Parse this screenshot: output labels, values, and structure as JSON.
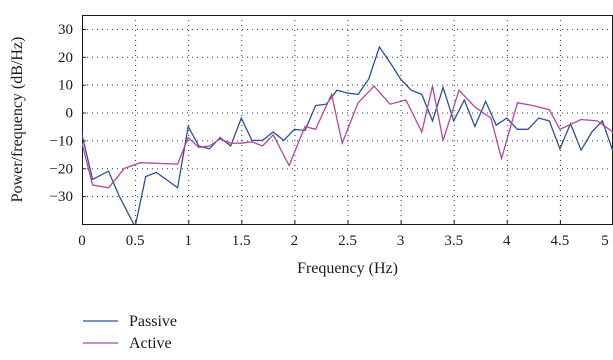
{
  "chart_data": {
    "type": "line",
    "xlabel": "Frequency (Hz)",
    "ylabel": "Power/frequency (dB/Hz)",
    "xlim": [
      0,
      5
    ],
    "ylim": [
      -40,
      35
    ],
    "x_ticks": [
      0,
      0.5,
      1,
      1.5,
      2,
      2.5,
      3,
      3.5,
      4,
      4.5,
      5
    ],
    "x_tick_labels": [
      "0",
      "0.5",
      "1",
      "1.5",
      "2",
      "2.5",
      "3",
      "3.5",
      "4",
      "4.5",
      "5"
    ],
    "y_ticks": [
      30,
      20,
      10,
      0,
      -10,
      -20,
      -30
    ],
    "y_tick_labels": [
      "30",
      "20",
      "10",
      "0",
      "−10",
      "−20",
      "−30"
    ],
    "grid": true,
    "legend_position": "below-left",
    "series": [
      {
        "name": "Passive",
        "color": "#2e4f9e",
        "points": [
          [
            0,
            -8
          ],
          [
            0.1,
            -24
          ],
          [
            0.25,
            -21
          ],
          [
            0.35,
            -30
          ],
          [
            0.5,
            -41
          ],
          [
            0.6,
            -23
          ],
          [
            0.7,
            -21.5
          ],
          [
            0.9,
            -27
          ],
          [
            1.0,
            -5
          ],
          [
            1.1,
            -12
          ],
          [
            1.2,
            -13
          ],
          [
            1.3,
            -9
          ],
          [
            1.4,
            -12
          ],
          [
            1.5,
            -2
          ],
          [
            1.6,
            -10
          ],
          [
            1.7,
            -10
          ],
          [
            1.8,
            -7
          ],
          [
            1.9,
            -10
          ],
          [
            2.0,
            -6
          ],
          [
            2.1,
            -6.5
          ],
          [
            2.2,
            2.5
          ],
          [
            2.3,
            3
          ],
          [
            2.4,
            8
          ],
          [
            2.5,
            7
          ],
          [
            2.6,
            6.5
          ],
          [
            2.7,
            12
          ],
          [
            2.8,
            23.5
          ],
          [
            2.9,
            18
          ],
          [
            3.0,
            12
          ],
          [
            3.1,
            8
          ],
          [
            3.2,
            6.5
          ],
          [
            3.3,
            -3
          ],
          [
            3.4,
            9
          ],
          [
            3.5,
            -3
          ],
          [
            3.6,
            4.5
          ],
          [
            3.7,
            -5
          ],
          [
            3.8,
            4
          ],
          [
            3.9,
            -4.5
          ],
          [
            4.0,
            -2
          ],
          [
            4.1,
            -6
          ],
          [
            4.2,
            -6
          ],
          [
            4.3,
            -2
          ],
          [
            4.4,
            -3
          ],
          [
            4.5,
            -13
          ],
          [
            4.6,
            -4
          ],
          [
            4.7,
            -13.5
          ],
          [
            4.8,
            -7
          ],
          [
            4.9,
            -3
          ],
          [
            5.0,
            -14
          ]
        ]
      },
      {
        "name": "Active",
        "color": "#b4479e",
        "points": [
          [
            0,
            -11
          ],
          [
            0.1,
            -26
          ],
          [
            0.25,
            -27
          ],
          [
            0.4,
            -20
          ],
          [
            0.55,
            -18
          ],
          [
            0.9,
            -18.5
          ],
          [
            1.0,
            -9
          ],
          [
            1.1,
            -12.5
          ],
          [
            1.2,
            -12
          ],
          [
            1.3,
            -9.5
          ],
          [
            1.4,
            -11
          ],
          [
            1.5,
            -11
          ],
          [
            1.6,
            -10.5
          ],
          [
            1.7,
            -12
          ],
          [
            1.8,
            -8
          ],
          [
            1.95,
            -19
          ],
          [
            2.1,
            -5
          ],
          [
            2.2,
            -6
          ],
          [
            2.35,
            6.5
          ],
          [
            2.45,
            -11
          ],
          [
            2.6,
            3.5
          ],
          [
            2.75,
            9.5
          ],
          [
            2.9,
            3
          ],
          [
            3.05,
            4.5
          ],
          [
            3.2,
            -7
          ],
          [
            3.3,
            9.5
          ],
          [
            3.4,
            -10
          ],
          [
            3.55,
            8
          ],
          [
            3.7,
            2
          ],
          [
            3.85,
            -2
          ],
          [
            3.95,
            -16.5
          ],
          [
            4.1,
            3.5
          ],
          [
            4.25,
            2.5
          ],
          [
            4.4,
            1
          ],
          [
            4.5,
            -6
          ],
          [
            4.7,
            -2.5
          ],
          [
            4.85,
            -3
          ],
          [
            5.0,
            -7
          ]
        ]
      }
    ]
  }
}
